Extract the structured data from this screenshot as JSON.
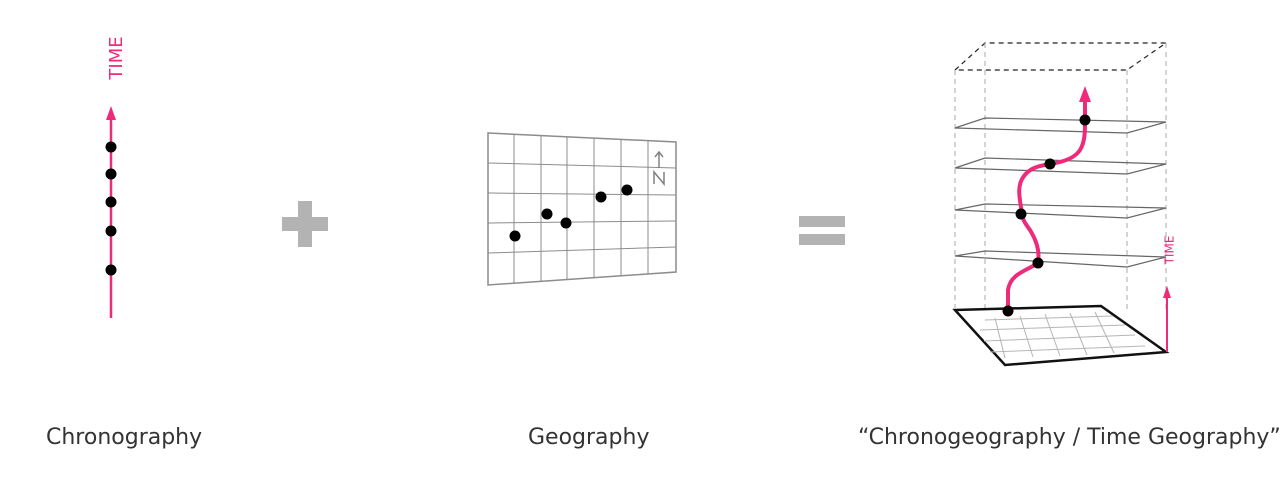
{
  "colors": {
    "accent": "#ee2a7b",
    "operator": "#b3b3b3",
    "grid": "#808080",
    "dot": "#000000"
  },
  "chronography": {
    "axis_label": "TIME",
    "caption": "Chronography",
    "event_count": 5
  },
  "operators": {
    "plus_icon": "plus-icon",
    "equals_icon": "equals-icon"
  },
  "geography": {
    "caption": "Geography",
    "north_icon": "north-arrow-icon",
    "location_count": 5
  },
  "chronogeography": {
    "axis_label": "TIME",
    "caption": "“Chronogeography / Time Geography”",
    "event_count": 5
  }
}
